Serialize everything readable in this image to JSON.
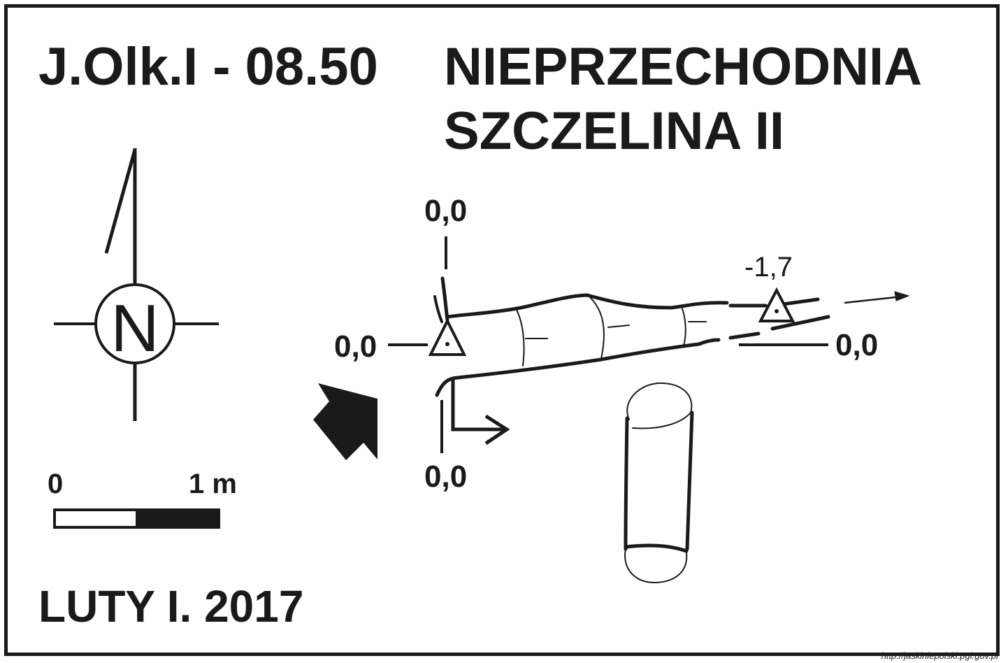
{
  "header": {
    "cave_code": "J.Olk.I - 08.50",
    "cave_name_line1": "NIEPRZECHODNIA",
    "cave_name_line2": "SZCZELINA II"
  },
  "north_arrow": {
    "letter": "N",
    "icon": "north-arrow-icon"
  },
  "scale_bar": {
    "start_label": "0",
    "end_label": "1 m",
    "length": 1,
    "unit": "m"
  },
  "survey_date": "LUTY I. 2017",
  "depth_labels": {
    "section_top": "0,0",
    "section_bottom": "0,0",
    "entrance_level": "0,0",
    "far_level": "0,0",
    "deep_point": "-1,7"
  },
  "symbols": {
    "entrance": "entrance-arrow-icon",
    "survey_station": "survey-station-triangle-icon",
    "continuation": "continuation-arrow-icon",
    "cross_section": "cross-section-icon"
  },
  "colors": {
    "ink": "#1a1a1a",
    "paper": "#ffffff"
  },
  "source": "http://jaskiniepolski.pgi.gov.pl"
}
